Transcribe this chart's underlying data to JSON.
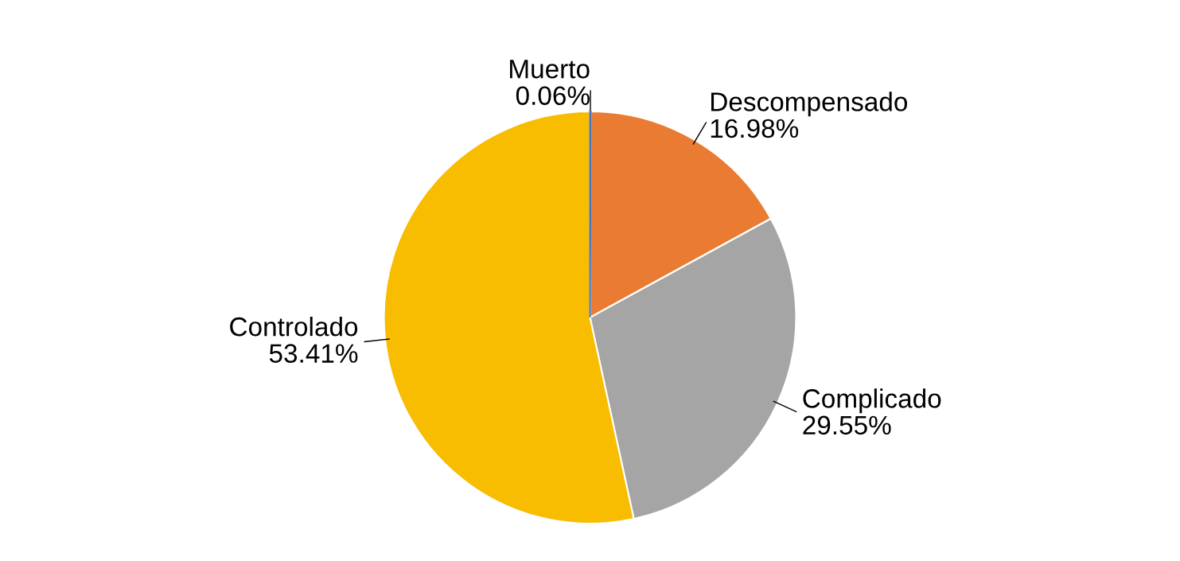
{
  "chart_data": {
    "type": "pie",
    "categories": [
      "Muerto",
      "Descompensado",
      "Complicado",
      "Controlado"
    ],
    "values": [
      0.06,
      16.98,
      29.55,
      53.41
    ],
    "value_labels": [
      "0.06%",
      "16.98%",
      "29.55%",
      "53.41%"
    ],
    "colors": [
      "#4472c4",
      "#e97c32",
      "#a5a5a5",
      "#f8bc00"
    ],
    "legend": false
  }
}
